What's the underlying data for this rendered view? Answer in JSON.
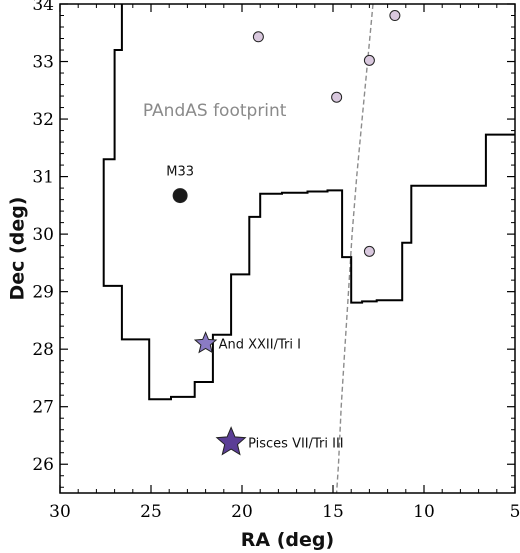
{
  "chart_data": {
    "type": "scatter",
    "xlabel": "RA (deg)",
    "ylabel": "Dec (deg)",
    "xlim": [
      30,
      5
    ],
    "ylim": [
      25.5,
      34
    ],
    "xticks": [
      30,
      25,
      20,
      15,
      10,
      5
    ],
    "yticks": [
      26,
      27,
      28,
      29,
      30,
      31,
      32,
      33,
      34
    ],
    "grid": false,
    "footprint_label": "PAndAS footprint",
    "footprint_boundary": [
      [
        27.6,
        34.0
      ],
      [
        27.6,
        31.3
      ],
      [
        27.0,
        31.3
      ],
      [
        27.0,
        33.2
      ],
      [
        26.6,
        33.2
      ],
      [
        26.6,
        34.0
      ],
      [
        26.0,
        34.0
      ]
    ],
    "footprint_boundary_main": [
      [
        26.6,
        34.0
      ],
      [
        26.6,
        33.2
      ],
      [
        27.0,
        33.2
      ],
      [
        27.0,
        31.3
      ],
      [
        27.6,
        31.3
      ],
      [
        27.6,
        29.1
      ],
      [
        26.6,
        29.1
      ],
      [
        26.6,
        28.17
      ],
      [
        25.1,
        28.17
      ],
      [
        25.1,
        27.13
      ],
      [
        23.9,
        27.13
      ],
      [
        23.9,
        27.17
      ],
      [
        22.6,
        27.17
      ],
      [
        22.6,
        27.43
      ],
      [
        21.6,
        27.43
      ],
      [
        21.6,
        28.25
      ],
      [
        20.6,
        28.25
      ],
      [
        20.6,
        29.3
      ],
      [
        19.6,
        29.3
      ],
      [
        19.6,
        30.3
      ],
      [
        19.0,
        30.3
      ],
      [
        19.0,
        30.7
      ],
      [
        17.8,
        30.7
      ],
      [
        17.8,
        30.72
      ],
      [
        16.4,
        30.72
      ],
      [
        16.4,
        30.74
      ],
      [
        15.3,
        30.74
      ],
      [
        15.3,
        30.76
      ],
      [
        14.5,
        30.76
      ],
      [
        14.5,
        29.6
      ],
      [
        14.0,
        29.6
      ],
      [
        14.0,
        28.81
      ],
      [
        13.4,
        28.81
      ],
      [
        13.4,
        28.83
      ],
      [
        12.6,
        28.83
      ],
      [
        12.6,
        28.85
      ],
      [
        11.2,
        28.85
      ],
      [
        11.2,
        29.85
      ],
      [
        10.7,
        29.85
      ],
      [
        10.7,
        30.84
      ],
      [
        6.6,
        30.84
      ],
      [
        6.6,
        31.73
      ],
      [
        5.0,
        31.73
      ]
    ],
    "dashed_curve": [
      [
        12.8,
        34.0
      ],
      [
        13.1,
        33.0
      ],
      [
        13.4,
        32.0
      ],
      [
        13.7,
        31.0
      ],
      [
        13.95,
        30.0
      ],
      [
        14.15,
        29.0
      ],
      [
        14.35,
        28.0
      ],
      [
        14.55,
        27.0
      ],
      [
        14.7,
        26.0
      ],
      [
        14.8,
        25.5
      ]
    ],
    "points": [
      {
        "x": 23.4,
        "y": 30.67,
        "marker": "circle",
        "color": "#1a1a1a",
        "size": "large",
        "label": "M33"
      },
      {
        "x": 22.0,
        "y": 28.1,
        "marker": "star",
        "color": "#8a7bc4",
        "size": "medium",
        "label": "And XXII/Tri I"
      },
      {
        "x": 20.6,
        "y": 26.38,
        "marker": "star",
        "color": "#5b3e96",
        "size": "large",
        "label": "Pisces VII/Tri III"
      },
      {
        "x": 19.1,
        "y": 33.43,
        "marker": "circle",
        "color": "#d9c8de",
        "size": "small",
        "label": ""
      },
      {
        "x": 14.8,
        "y": 32.38,
        "marker": "circle",
        "color": "#d9c8de",
        "size": "small",
        "label": ""
      },
      {
        "x": 13.0,
        "y": 33.02,
        "marker": "circle",
        "color": "#d9c8de",
        "size": "small",
        "label": ""
      },
      {
        "x": 11.6,
        "y": 33.8,
        "marker": "circle",
        "color": "#d9c8de",
        "size": "small",
        "label": ""
      },
      {
        "x": 13.0,
        "y": 29.7,
        "marker": "circle",
        "color": "#d9c8de",
        "size": "small",
        "label": ""
      }
    ]
  }
}
